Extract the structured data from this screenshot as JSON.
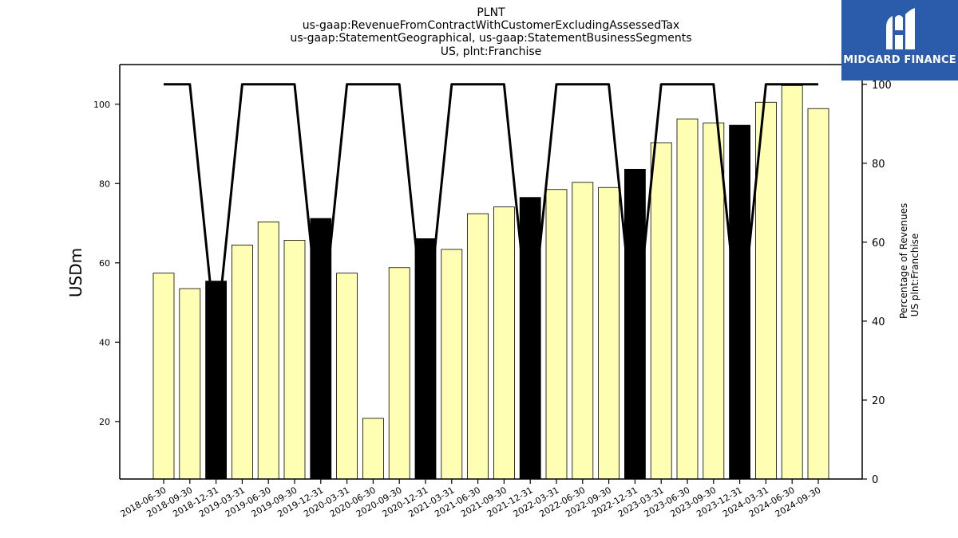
{
  "chart_data": {
    "type": "bar",
    "title_lines": [
      "PLNT",
      "us-gaap:RevenueFromContractWithCustomerExcludingAssessedTax",
      "us-gaap:StatementGeographical, us-gaap:StatementBusinessSegments",
      "US, plnt:Franchise"
    ],
    "ylabel": "USDm",
    "ylabel_right_lines": [
      "Percentage of Revenues",
      "US plnt:Franchise"
    ],
    "categories": [
      "2018-06-30",
      "2018-09-30",
      "2018-12-31",
      "2019-03-31",
      "2019-06-30",
      "2019-09-30",
      "2019-12-31",
      "2020-03-31",
      "2020-06-30",
      "2020-09-30",
      "2020-12-31",
      "2021-03-31",
      "2021-06-30",
      "2021-09-30",
      "2021-12-31",
      "2022-03-31",
      "2022-06-30",
      "2022-09-30",
      "2022-12-31",
      "2023-03-31",
      "2023-06-30",
      "2023-09-30",
      "2023-12-31",
      "2024-03-31",
      "2024-06-30",
      "2024-09-30"
    ],
    "values": [
      57.4,
      53.5,
      55.4,
      64.5,
      70.3,
      65.7,
      71.2,
      57.4,
      20.8,
      58.8,
      66.1,
      63.4,
      72.4,
      74.1,
      76.5,
      78.5,
      80.3,
      79.0,
      83.6,
      90.3,
      96.3,
      95.3,
      94.7,
      100.5,
      104.7,
      98.9
    ],
    "highlight": [
      false,
      false,
      true,
      false,
      false,
      false,
      true,
      false,
      false,
      false,
      true,
      false,
      false,
      false,
      true,
      false,
      false,
      false,
      true,
      false,
      false,
      false,
      true,
      false,
      false,
      false
    ],
    "percentage_series": [
      100,
      100,
      35,
      100,
      100,
      100,
      35,
      100,
      100,
      100,
      35,
      100,
      100,
      100,
      35,
      100,
      100,
      100,
      35,
      100,
      100,
      100,
      35,
      100,
      100,
      100
    ],
    "ylim": [
      5.5,
      110
    ],
    "yticks": [
      20,
      40,
      60,
      80,
      100
    ],
    "ylim_right": [
      0,
      105
    ],
    "yticks_right": [
      0,
      20,
      40,
      60,
      80,
      100
    ],
    "bar_color": "#ffffb4",
    "highlight_color": "#000000",
    "line_color": "#000000",
    "grid": false
  },
  "logo": {
    "text": "MIDGARD FINANCE",
    "color": "#2b5cab"
  }
}
